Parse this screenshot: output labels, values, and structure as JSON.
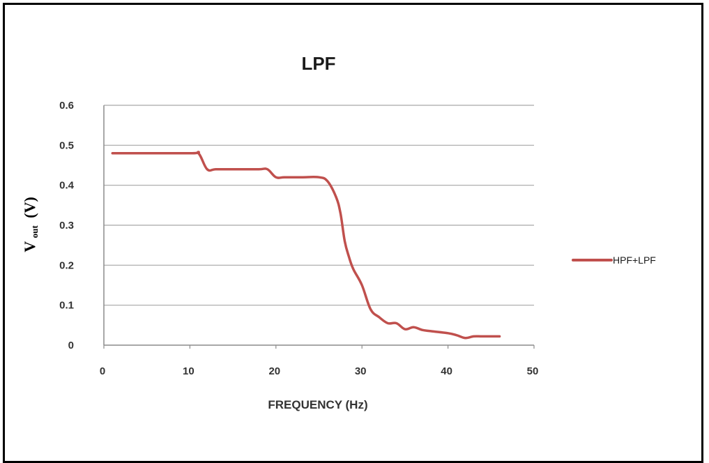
{
  "chart_data": {
    "type": "line",
    "title": "LPF",
    "xlabel": "FREQUENCY (Hz)",
    "ylabel": {
      "main": "V",
      "subscript": "out",
      "unit": "(V)"
    },
    "xlim": [
      0,
      50
    ],
    "ylim": [
      0,
      0.6
    ],
    "x_ticks": [
      "0",
      "10",
      "20",
      "30",
      "40",
      "50"
    ],
    "y_ticks": [
      "0",
      "0.1",
      "0.2",
      "0.3",
      "0.4",
      "0.5",
      "0.6"
    ],
    "grid": "horizontal",
    "legend": "right",
    "series": [
      {
        "name": "HPF+LPF",
        "color": "#c0504d",
        "x": [
          1,
          10,
          11,
          12,
          13,
          15,
          18,
          19,
          20,
          21,
          23,
          25,
          26,
          27,
          27.5,
          28,
          28.5,
          29,
          30,
          31,
          32,
          33,
          34,
          35,
          36,
          37,
          38,
          40,
          41,
          42,
          43,
          44,
          46
        ],
        "y": [
          0.48,
          0.48,
          0.48,
          0.44,
          0.44,
          0.44,
          0.44,
          0.44,
          0.42,
          0.42,
          0.42,
          0.42,
          0.41,
          0.37,
          0.33,
          0.26,
          0.22,
          0.19,
          0.15,
          0.09,
          0.07,
          0.055,
          0.055,
          0.04,
          0.045,
          0.038,
          0.035,
          0.03,
          0.025,
          0.018,
          0.022,
          0.022,
          0.022
        ]
      }
    ]
  }
}
